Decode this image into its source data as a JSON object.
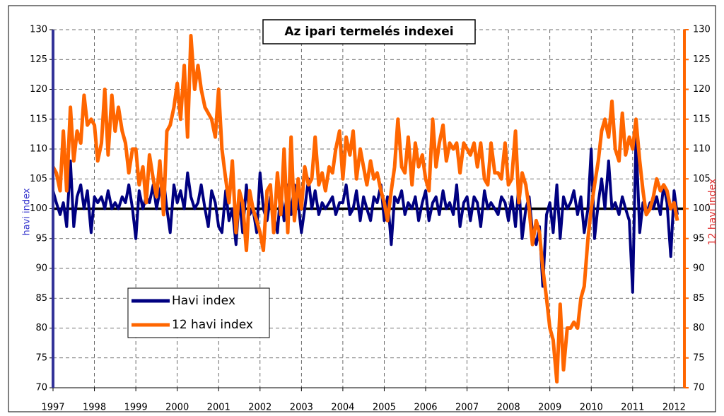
{
  "chart_data": {
    "type": "line",
    "title": "Az ipari termelés indexei",
    "y_label": "havi index",
    "y2_label": "12 havi index",
    "xlim": [
      1997,
      2012.25
    ],
    "xticks": [
      1997,
      1998,
      1999,
      2000,
      2001,
      2002,
      2003,
      2004,
      2005,
      2006,
      2007,
      2008,
      2009,
      2010,
      2011,
      2012
    ],
    "ylim": [
      70,
      130
    ],
    "yticks": [
      70,
      75,
      80,
      85,
      90,
      95,
      100,
      105,
      110,
      115,
      120,
      125,
      130
    ],
    "y2lim": [
      70,
      130
    ],
    "y2ticks": [
      70,
      75,
      80,
      85,
      90,
      95,
      100,
      105,
      110,
      115,
      120,
      125,
      130
    ],
    "reference_line": 100,
    "grid": true,
    "legend": "bottom-left",
    "x": [
      1997.0,
      1997.08,
      1997.17,
      1997.25,
      1997.33,
      1997.42,
      1997.5,
      1997.58,
      1997.67,
      1997.75,
      1997.83,
      1997.92,
      1998.0,
      1998.08,
      1998.17,
      1998.25,
      1998.33,
      1998.42,
      1998.5,
      1998.58,
      1998.67,
      1998.75,
      1998.83,
      1998.92,
      1999.0,
      1999.08,
      1999.17,
      1999.25,
      1999.33,
      1999.42,
      1999.5,
      1999.58,
      1999.67,
      1999.75,
      1999.83,
      1999.92,
      2000.0,
      2000.08,
      2000.17,
      2000.25,
      2000.33,
      2000.42,
      2000.5,
      2000.58,
      2000.67,
      2000.75,
      2000.83,
      2000.92,
      2001.0,
      2001.08,
      2001.17,
      2001.25,
      2001.33,
      2001.42,
      2001.5,
      2001.58,
      2001.67,
      2001.75,
      2001.83,
      2001.92,
      2002.0,
      2002.08,
      2002.17,
      2002.25,
      2002.33,
      2002.42,
      2002.5,
      2002.58,
      2002.67,
      2002.75,
      2002.83,
      2002.92,
      2003.0,
      2003.08,
      2003.17,
      2003.25,
      2003.33,
      2003.42,
      2003.5,
      2003.58,
      2003.67,
      2003.75,
      2003.83,
      2003.92,
      2004.0,
      2004.08,
      2004.17,
      2004.25,
      2004.33,
      2004.42,
      2004.5,
      2004.58,
      2004.67,
      2004.75,
      2004.83,
      2004.92,
      2005.0,
      2005.08,
      2005.17,
      2005.25,
      2005.33,
      2005.42,
      2005.5,
      2005.58,
      2005.67,
      2005.75,
      2005.83,
      2005.92,
      2006.0,
      2006.08,
      2006.17,
      2006.25,
      2006.33,
      2006.42,
      2006.5,
      2006.58,
      2006.67,
      2006.75,
      2006.83,
      2006.92,
      2007.0,
      2007.08,
      2007.17,
      2007.25,
      2007.33,
      2007.42,
      2007.5,
      2007.58,
      2007.67,
      2007.75,
      2007.83,
      2007.92,
      2008.0,
      2008.08,
      2008.17,
      2008.25,
      2008.33,
      2008.42,
      2008.5,
      2008.58,
      2008.67,
      2008.75,
      2008.83,
      2008.92,
      2009.0,
      2009.08,
      2009.17,
      2009.25,
      2009.33,
      2009.42,
      2009.5,
      2009.58,
      2009.67,
      2009.75,
      2009.83,
      2009.92,
      2010.0,
      2010.08,
      2010.17,
      2010.25,
      2010.33,
      2010.42,
      2010.5,
      2010.58,
      2010.67,
      2010.75,
      2010.83,
      2010.92,
      2011.0,
      2011.08,
      2011.17,
      2011.25,
      2011.33,
      2011.42,
      2011.5,
      2011.58,
      2011.67,
      2011.75,
      2011.83,
      2011.92,
      2012.0,
      2012.08
    ],
    "series": [
      {
        "name": "Havi index",
        "color": "#000080",
        "axis": "y",
        "values": [
          103,
          101,
          99,
          101,
          97,
          108,
          97,
          102,
          104,
          100,
          103,
          96,
          102,
          101,
          102,
          100,
          103,
          100,
          101,
          100,
          102,
          101,
          104,
          100,
          95,
          103,
          100,
          102,
          101,
          104,
          100,
          103,
          105,
          100,
          96,
          104,
          101,
          103,
          100,
          106,
          102,
          100,
          101,
          104,
          100,
          97,
          103,
          101,
          97,
          96,
          103,
          98,
          100,
          94,
          102,
          96,
          104,
          99,
          100,
          96,
          106,
          100,
          98,
          102,
          99,
          96,
          103,
          98,
          104,
          99,
          104,
          101,
          96,
          100,
          105,
          100,
          103,
          99,
          101,
          100,
          101,
          102,
          99,
          101,
          101,
          104,
          99,
          100,
          103,
          98,
          102,
          100,
          98,
          102,
          101,
          104,
          98,
          102,
          94,
          102,
          101,
          103,
          99,
          101,
          100,
          102,
          98,
          101,
          103,
          98,
          101,
          102,
          99,
          103,
          100,
          101,
          99,
          104,
          97,
          101,
          102,
          98,
          102,
          101,
          97,
          103,
          100,
          101,
          100,
          99,
          102,
          101,
          98,
          102,
          97,
          104,
          95,
          100,
          102,
          96,
          94,
          97,
          87,
          99,
          101,
          96,
          104,
          95,
          102,
          100,
          101,
          103,
          99,
          102,
          96,
          100,
          110,
          95,
          101,
          105,
          100,
          108,
          100,
          101,
          99,
          102,
          100,
          98,
          86,
          112,
          96,
          101,
          99,
          101,
          100,
          102,
          99,
          104,
          101,
          92,
          103,
          99
        ]
      },
      {
        "name": "12 havi index",
        "color": "#ff6600",
        "axis": "y2",
        "values": [
          107,
          106,
          103,
          113,
          103,
          117,
          108,
          113,
          111,
          119,
          114,
          115,
          114,
          108,
          111,
          120,
          109,
          119,
          113,
          117,
          113,
          111,
          106,
          110,
          110,
          104,
          107,
          101,
          109,
          105,
          102,
          108,
          99,
          113,
          114,
          117,
          121,
          115,
          124,
          112,
          129,
          120,
          124,
          120,
          117,
          116,
          115,
          112,
          120,
          110,
          105,
          101,
          108,
          96,
          103,
          101,
          93,
          103,
          100,
          98,
          96,
          93,
          103,
          104,
          96,
          106,
          99,
          110,
          96,
          112,
          98,
          105,
          100,
          107,
          104,
          105,
          112,
          104,
          106,
          103,
          107,
          106,
          110,
          113,
          105,
          112,
          109,
          113,
          105,
          110,
          107,
          104,
          108,
          105,
          106,
          103,
          101,
          98,
          103,
          107,
          115,
          107,
          106,
          112,
          104,
          111,
          107,
          109,
          105,
          103,
          115,
          107,
          111,
          114,
          108,
          111,
          110,
          111,
          106,
          111,
          110,
          109,
          111,
          107,
          111,
          105,
          104,
          111,
          106,
          106,
          105,
          111,
          104,
          105,
          113,
          101,
          106,
          104,
          100,
          94,
          98,
          96,
          90,
          85,
          80,
          78,
          71,
          84,
          73,
          80,
          80,
          81,
          80,
          85,
          87,
          95,
          100,
          104,
          108,
          113,
          115,
          112,
          118,
          110,
          108,
          116,
          109,
          112,
          110,
          115,
          108,
          103,
          99,
          100,
          102,
          105,
          103,
          104,
          103,
          100,
          101,
          98
        ]
      }
    ]
  }
}
